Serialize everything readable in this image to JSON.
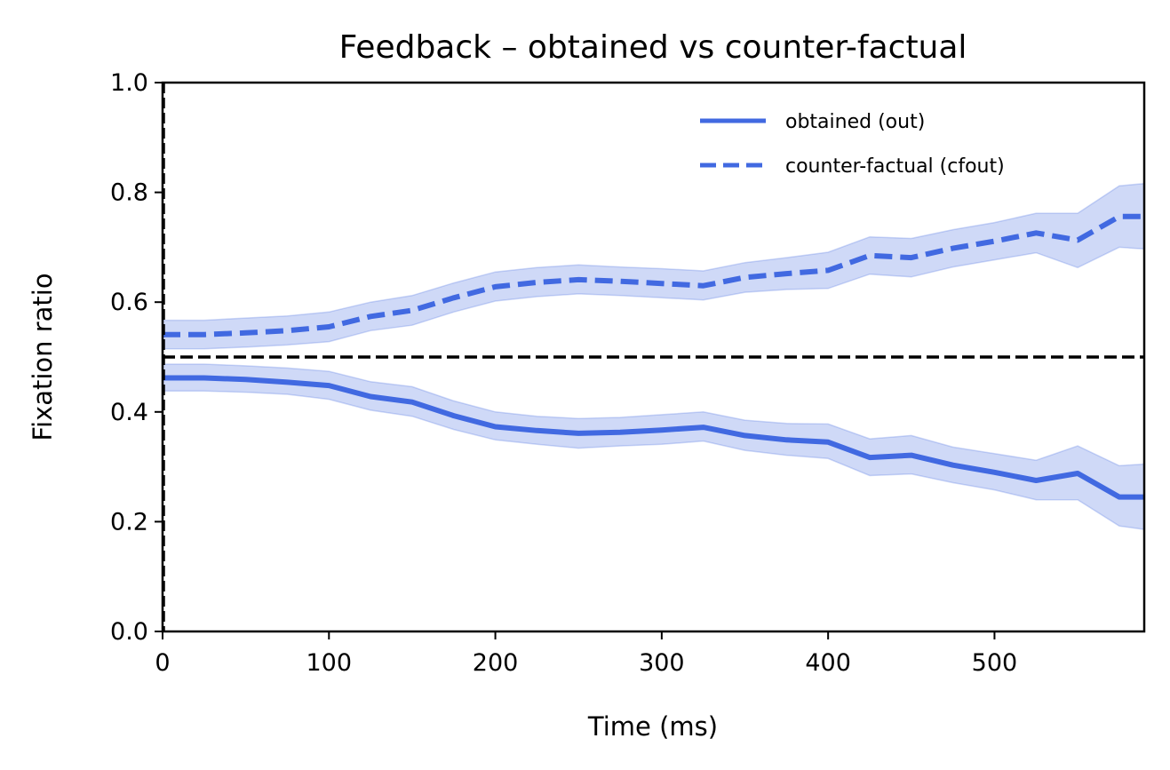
{
  "chart_data": {
    "type": "line",
    "title": "Feedback – obtained vs counter-factual",
    "xlabel": "Time (ms)",
    "ylabel": "Fixation ratio",
    "xlim": [
      0,
      590
    ],
    "ylim": [
      0,
      1.0
    ],
    "xticks": [
      0,
      100,
      200,
      300,
      400,
      500
    ],
    "yticks": [
      0.0,
      0.2,
      0.4,
      0.6,
      0.8,
      1.0
    ],
    "ytick_labels": [
      "0.0",
      "0.2",
      "0.4",
      "0.6",
      "0.8",
      "1.0"
    ],
    "grid": false,
    "legend_position": "top-right",
    "reference_lines": [
      {
        "orientation": "horizontal",
        "value": 0.5,
        "style": "dashed",
        "color": "#000000"
      },
      {
        "orientation": "vertical",
        "value": 0,
        "style": "dashed",
        "color": "#000000"
      }
    ],
    "x": [
      0,
      25,
      50,
      75,
      100,
      125,
      150,
      175,
      200,
      225,
      250,
      275,
      300,
      325,
      350,
      375,
      400,
      425,
      450,
      475,
      500,
      525,
      550,
      575,
      590
    ],
    "series": [
      {
        "name": "obtained (out)",
        "style": "solid",
        "color": "#4169e1",
        "values": [
          0.462,
          0.462,
          0.459,
          0.454,
          0.448,
          0.428,
          0.418,
          0.393,
          0.373,
          0.366,
          0.361,
          0.363,
          0.367,
          0.372,
          0.357,
          0.349,
          0.345,
          0.317,
          0.321,
          0.303,
          0.29,
          0.275,
          0.288,
          0.245,
          0.245
        ],
        "lower": [
          0.438,
          0.438,
          0.436,
          0.432,
          0.423,
          0.403,
          0.392,
          0.368,
          0.349,
          0.341,
          0.334,
          0.338,
          0.341,
          0.347,
          0.33,
          0.321,
          0.315,
          0.284,
          0.287,
          0.271,
          0.258,
          0.24,
          0.24,
          0.192,
          0.186
        ],
        "upper": [
          0.487,
          0.487,
          0.484,
          0.48,
          0.474,
          0.455,
          0.446,
          0.42,
          0.4,
          0.392,
          0.388,
          0.39,
          0.395,
          0.4,
          0.385,
          0.379,
          0.378,
          0.351,
          0.357,
          0.336,
          0.324,
          0.312,
          0.338,
          0.302,
          0.305
        ]
      },
      {
        "name": "counter-factual (cfout)",
        "style": "dashed",
        "color": "#4169e1",
        "values": [
          0.541,
          0.541,
          0.544,
          0.548,
          0.555,
          0.574,
          0.585,
          0.608,
          0.628,
          0.636,
          0.641,
          0.638,
          0.634,
          0.63,
          0.645,
          0.652,
          0.658,
          0.685,
          0.681,
          0.698,
          0.711,
          0.726,
          0.713,
          0.756,
          0.756
        ],
        "lower": [
          0.515,
          0.515,
          0.518,
          0.522,
          0.528,
          0.548,
          0.558,
          0.582,
          0.602,
          0.61,
          0.615,
          0.612,
          0.608,
          0.604,
          0.618,
          0.623,
          0.625,
          0.651,
          0.646,
          0.664,
          0.677,
          0.69,
          0.663,
          0.7,
          0.697
        ],
        "upper": [
          0.567,
          0.567,
          0.571,
          0.575,
          0.582,
          0.6,
          0.612,
          0.635,
          0.655,
          0.663,
          0.668,
          0.664,
          0.661,
          0.657,
          0.672,
          0.681,
          0.691,
          0.719,
          0.716,
          0.732,
          0.745,
          0.762,
          0.762,
          0.812,
          0.816
        ]
      }
    ]
  }
}
